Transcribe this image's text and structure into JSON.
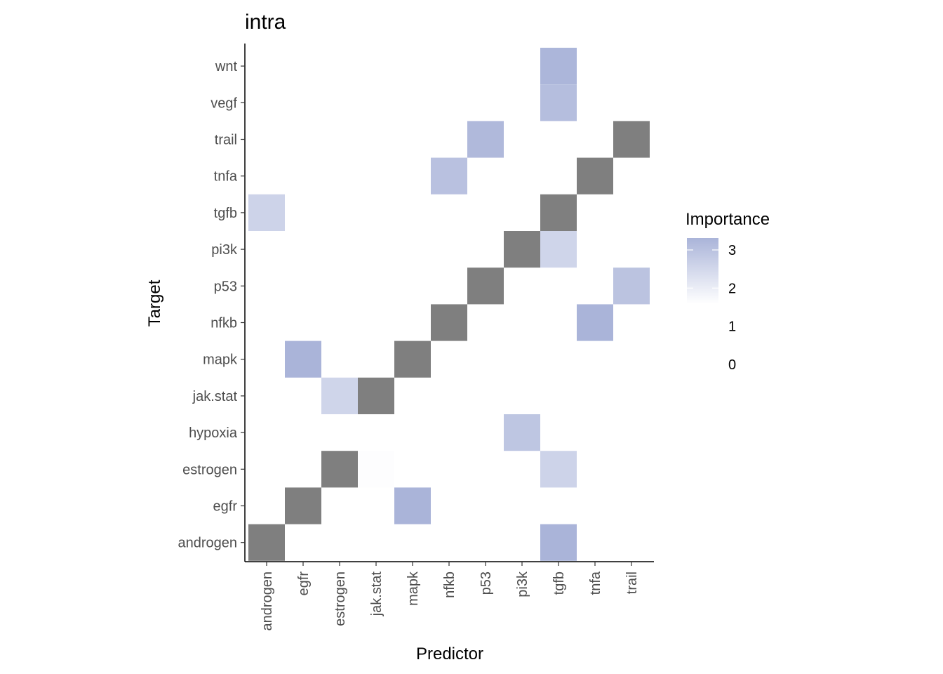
{
  "chart_data": {
    "type": "heatmap",
    "title": "intra",
    "xlabel": "Predictor",
    "ylabel": "Target",
    "x_categories": [
      "androgen",
      "egfr",
      "estrogen",
      "jak.stat",
      "mapk",
      "nfkb",
      "p53",
      "pi3k",
      "tgfb",
      "tnfa",
      "trail"
    ],
    "y_categories": [
      "androgen",
      "egfr",
      "estrogen",
      "hypoxia",
      "jak.stat",
      "mapk",
      "nfkb",
      "p53",
      "pi3k",
      "tgfb",
      "tnfa",
      "trail",
      "vegf",
      "wnt"
    ],
    "self_color": "#7f7f7f",
    "color_low": "#ffffff",
    "color_high": "#aab4d9",
    "legend": {
      "title": "Importance",
      "position": "right",
      "range": [
        1,
        3.3
      ],
      "breaks": [
        3,
        2,
        1,
        0
      ]
    },
    "self_cells": [
      {
        "x": "androgen",
        "y": "androgen"
      },
      {
        "x": "egfr",
        "y": "egfr"
      },
      {
        "x": "estrogen",
        "y": "estrogen"
      },
      {
        "x": "jak.stat",
        "y": "jak.stat"
      },
      {
        "x": "mapk",
        "y": "mapk"
      },
      {
        "x": "nfkb",
        "y": "nfkb"
      },
      {
        "x": "p53",
        "y": "p53"
      },
      {
        "x": "pi3k",
        "y": "pi3k"
      },
      {
        "x": "tgfb",
        "y": "tgfb"
      },
      {
        "x": "tnfa",
        "y": "tnfa"
      },
      {
        "x": "trail",
        "y": "trail"
      }
    ],
    "cells": [
      {
        "x": "tgfb",
        "y": "wnt",
        "value": 3.25
      },
      {
        "x": "tgfb",
        "y": "vegf",
        "value": 3.0
      },
      {
        "x": "p53",
        "y": "trail",
        "value": 3.15
      },
      {
        "x": "nfkb",
        "y": "tnfa",
        "value": 2.9
      },
      {
        "x": "androgen",
        "y": "tgfb",
        "value": 2.35
      },
      {
        "x": "tgfb",
        "y": "pi3k",
        "value": 2.3
      },
      {
        "x": "trail",
        "y": "p53",
        "value": 2.85
      },
      {
        "x": "tnfa",
        "y": "nfkb",
        "value": 3.3
      },
      {
        "x": "egfr",
        "y": "mapk",
        "value": 3.3
      },
      {
        "x": "estrogen",
        "y": "jak.stat",
        "value": 2.3
      },
      {
        "x": "pi3k",
        "y": "hypoxia",
        "value": 2.75
      },
      {
        "x": "jak.stat",
        "y": "estrogen",
        "value": 1.05
      },
      {
        "x": "tgfb",
        "y": "estrogen",
        "value": 2.35
      },
      {
        "x": "mapk",
        "y": "egfr",
        "value": 3.3
      },
      {
        "x": "tgfb",
        "y": "androgen",
        "value": 3.3
      }
    ]
  }
}
